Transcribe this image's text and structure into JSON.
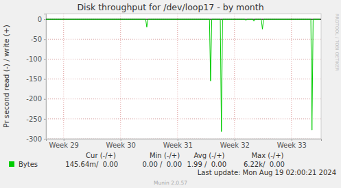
{
  "chart_data": {
    "type": "line",
    "title": "Disk throughput for /dev/loop17 - by month",
    "y_label": "Pr second read (-) / write (+)",
    "x": [
      29.19,
      30.94,
      30.96,
      30.98,
      32.06,
      32.08,
      32.1,
      32.25,
      32.27,
      32.29,
      32.68,
      32.7,
      32.72,
      32.82,
      32.84,
      32.86,
      32.97,
      32.99,
      33.01,
      33.84,
      33.86,
      33.88,
      34.0
    ],
    "series": [
      {
        "name": "Bytes",
        "color": "#00cc00",
        "values": [
          0,
          0,
          -20,
          0,
          0,
          -155,
          0,
          0,
          -282,
          0,
          0,
          -3,
          0,
          0,
          -5,
          0,
          0,
          -25,
          0,
          0,
          -278,
          0,
          0
        ]
      }
    ],
    "xlim": [
      29.19,
      34.02
    ],
    "xticks": [
      {
        "value": 29.5,
        "label": "Week 29"
      },
      {
        "value": 30.5,
        "label": "Week 30"
      },
      {
        "value": 31.5,
        "label": "Week 31"
      },
      {
        "value": 32.5,
        "label": "Week 32"
      },
      {
        "value": 33.5,
        "label": "Week 33"
      }
    ],
    "ylim": [
      -300,
      14
    ],
    "yticks": [
      0,
      -50,
      -100,
      -150,
      -200,
      -250,
      -300
    ],
    "grid": true,
    "legend": "bottom",
    "stats": {
      "columns": [
        "Cur (-/+)",
        "Min (-/+)",
        "Avg (-/+)",
        "Max (-/+)"
      ],
      "values": [
        "145.64m/  0.00",
        "0.00 /  0.00",
        "1.99 /  0.00",
        "6.22k/  0.00"
      ]
    },
    "last_update": "Last update: Mon Aug 19 02:00:21 2024",
    "footer": "Munin 2.0.57",
    "watermark": "RRDTOOL / TOBI OETIKER"
  }
}
